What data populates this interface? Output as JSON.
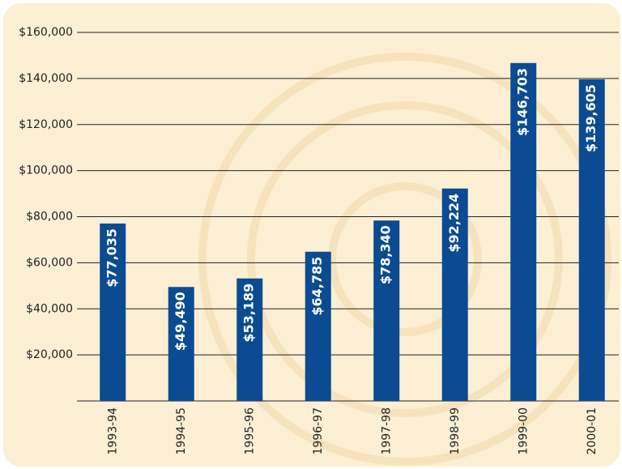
{
  "chart_data": {
    "type": "bar",
    "categories": [
      "1993-94",
      "1994-95",
      "1995-96",
      "1996-97",
      "1997-98",
      "1998-99",
      "1999-00",
      "2000-01"
    ],
    "values": [
      77035,
      49490,
      53189,
      64785,
      78340,
      92224,
      146703,
      139605
    ],
    "value_labels": [
      "$77,035",
      "$49,490",
      "$53,189",
      "$64,785",
      "$78,340",
      "$92,224",
      "$146,703",
      "$139,605"
    ],
    "color": "#0b4b91",
    "ylim": [
      0,
      160000
    ],
    "yticks": [
      {
        "value": 20000,
        "label": "$20,000"
      },
      {
        "value": 40000,
        "label": "$40,000"
      },
      {
        "value": 60000,
        "label": "$60,000"
      },
      {
        "value": 80000,
        "label": "$80,000"
      },
      {
        "value": 100000,
        "label": "$100,000"
      },
      {
        "value": 120000,
        "label": "$120,000"
      },
      {
        "value": 140000,
        "label": "$140,000"
      },
      {
        "value": 160000,
        "label": "$160,000"
      }
    ],
    "grid": true
  }
}
